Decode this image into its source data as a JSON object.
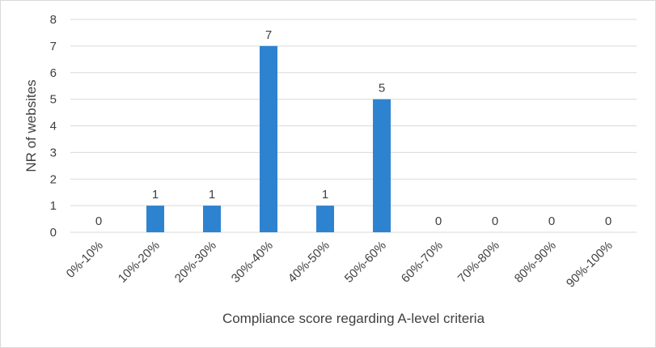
{
  "chart_data": {
    "type": "bar",
    "categories": [
      "0%-10%",
      "10%-20%",
      "20%-30%",
      "30%-40%",
      "40%-50%",
      "50%-60%",
      "60%-70%",
      "70%-80%",
      "80%-90%",
      "90%-100%"
    ],
    "values": [
      0,
      1,
      1,
      7,
      1,
      5,
      0,
      0,
      0,
      0
    ],
    "data_labels": [
      "0",
      "1",
      "1",
      "7",
      "1",
      "5",
      "0",
      "0",
      "0",
      "0"
    ],
    "title": "",
    "xlabel": "Compliance score regarding A-level criteria",
    "ylabel": "NR of websites",
    "ylim": [
      0,
      8
    ],
    "yticks": [
      "0",
      "1",
      "2",
      "3",
      "4",
      "5",
      "6",
      "7",
      "8"
    ],
    "grid": true,
    "legend": "none",
    "bar_color": "#2e83d0",
    "grid_color": "#d9d9d9"
  }
}
